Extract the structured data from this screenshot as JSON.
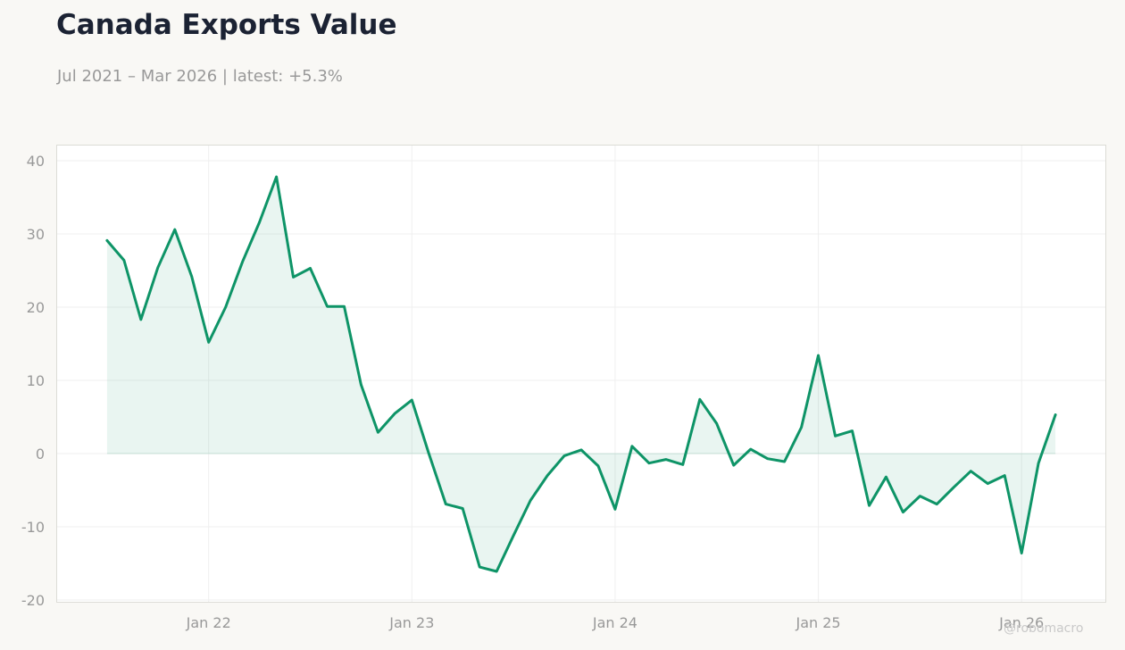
{
  "header": {
    "title": "Canada Exports Value",
    "subtitle": "Jul 2021 – Mar 2026 | latest: +5.3%"
  },
  "watermark": "@robomacro",
  "colors": {
    "line": "#0e9467",
    "fill": "#0e9467",
    "background": "#f9f8f5",
    "plot_background": "#ffffff",
    "grid": "#efefef",
    "frame": "#dcdcd6",
    "tick_text": "#999999"
  },
  "chart_data": {
    "type": "area",
    "title": "Canada Exports Value",
    "xlabel": "",
    "ylabel": "",
    "ylim": [
      -20,
      40
    ],
    "xlim": [
      "2021-04",
      "2026-06"
    ],
    "grid": true,
    "legend": "none",
    "y_ticks": [
      -20,
      -10,
      0,
      10,
      20,
      30,
      40
    ],
    "y_tick_labels": [
      "-20",
      "-10",
      "0",
      "10",
      "20",
      "30",
      "40"
    ],
    "x_ticks": [
      "2022-01",
      "2023-01",
      "2024-01",
      "2025-01",
      "2026-01"
    ],
    "x_tick_labels": [
      "Jan 22",
      "Jan 23",
      "Jan 24",
      "Jan 25",
      "Jan 26"
    ],
    "series": [
      {
        "x": [
          "2021-07",
          "2021-08",
          "2021-09",
          "2021-10",
          "2021-11",
          "2021-12",
          "2022-01",
          "2022-02",
          "2022-03",
          "2022-04",
          "2022-05",
          "2022-06",
          "2022-07",
          "2022-08",
          "2022-09",
          "2022-10",
          "2022-11",
          "2022-12",
          "2023-01",
          "2023-02",
          "2023-03",
          "2023-04",
          "2023-05",
          "2023-06",
          "2023-07",
          "2023-08",
          "2023-09",
          "2023-10",
          "2023-11",
          "2023-12",
          "2024-01",
          "2024-02",
          "2024-03",
          "2024-04",
          "2024-05",
          "2024-06",
          "2024-07",
          "2024-08",
          "2024-09",
          "2024-10",
          "2024-11",
          "2024-12",
          "2025-01",
          "2025-02",
          "2025-03",
          "2025-04",
          "2025-05",
          "2025-06",
          "2025-07",
          "2025-08",
          "2025-09",
          "2025-10",
          "2025-11",
          "2025-12",
          "2026-01",
          "2026-02",
          "2026-03"
        ],
        "values": [
          29.1,
          26.4,
          18.3,
          25.4,
          30.6,
          24.2,
          15.2,
          20.0,
          26.2,
          31.6,
          37.8,
          24.1,
          25.3,
          20.1,
          20.1,
          9.4,
          2.9,
          5.5,
          7.3,
          0.0,
          -6.9,
          -7.5,
          -15.5,
          -16.1,
          -11.2,
          -6.4,
          -3.0,
          -0.3,
          0.5,
          -1.7,
          -7.6,
          1.0,
          -1.3,
          -0.8,
          -1.5,
          7.4,
          4.1,
          -1.6,
          0.6,
          -0.7,
          -1.1,
          3.6,
          13.4,
          2.4,
          3.1,
          -7.1,
          -3.2,
          -8.0,
          -5.8,
          -6.9,
          -4.6,
          -2.4,
          -4.1,
          -3.0,
          -13.6,
          -1.3,
          5.3
        ]
      }
    ]
  }
}
